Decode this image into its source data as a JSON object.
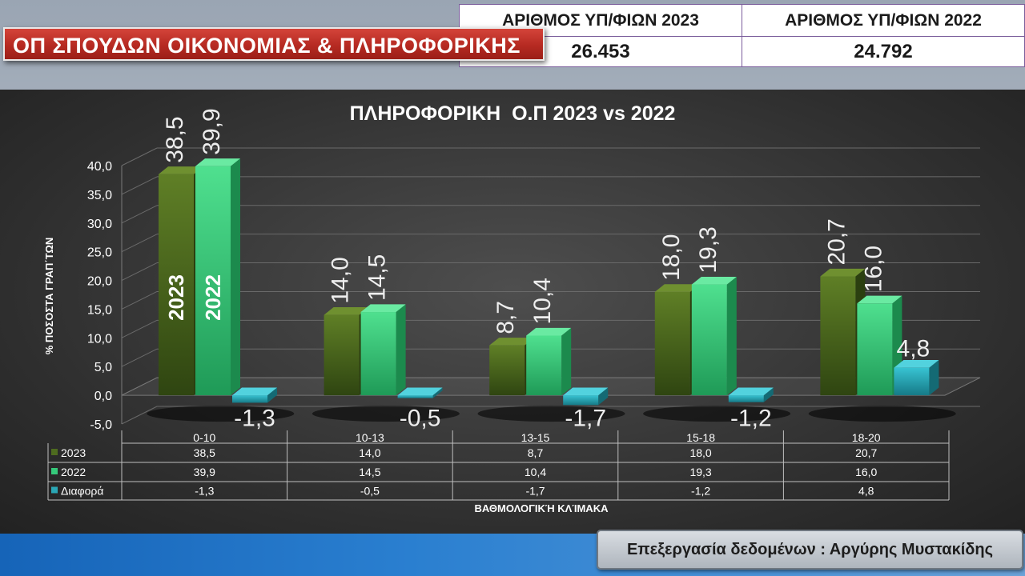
{
  "header": {
    "banner_title": "ΟΠ ΣΠΟΥΔΩΝ ΟΙΚΟΝΟΜΙΑΣ & ΠΛΗΡΟΦΟΡΙΚΗΣ",
    "stats": {
      "label_2023": "ΑΡΙΘΜΟΣ ΥΠ/ΦΙΩΝ 2023",
      "value_2023": "26.453",
      "label_2022": "ΑΡΙΘΜΟΣ ΥΠ/ΦΙΩΝ 2022",
      "value_2022": "24.792"
    }
  },
  "footer": {
    "credit": "Επεξεργασία δεδομένων : Αργύρης Μυστακίδης"
  },
  "colors": {
    "s2023": "#4e6b1f",
    "s2022": "#35c97a",
    "diff": "#2aa7b5",
    "banner": "#b62a22"
  },
  "chart_data": {
    "type": "bar",
    "title": "ΠΛΗΡΟΦΟΡΙΚΗ  Ο.Π 2023 vs 2022",
    "xlabel": "ΒΑΘΜΟΛΟΓΙΚΉ ΚΛΊΜΑΚΑ",
    "ylabel": "% ΠΟΣΟΣΤΑ ΓΡΑΠ΄ΤΩΝ",
    "ylim": [
      -5,
      40
    ],
    "yticks": [
      "-5,0",
      "0,0",
      "5,0",
      "10,0",
      "15,0",
      "20,0",
      "25,0",
      "30,0",
      "35,0",
      "40,0"
    ],
    "categories": [
      "0-10",
      "10-13",
      "13-15",
      "15-18",
      "18-20"
    ],
    "series": [
      {
        "name": "2023",
        "values": [
          38.5,
          14.0,
          8.7,
          18.0,
          20.7
        ],
        "labels": [
          "38,5",
          "14,0",
          "8,7",
          "18,0",
          "20,7"
        ]
      },
      {
        "name": "2022",
        "values": [
          39.9,
          14.5,
          10.4,
          19.3,
          16.0
        ],
        "labels": [
          "39,9",
          "14,5",
          "10,4",
          "19,3",
          "16,0"
        ]
      },
      {
        "name": "Διαφορά",
        "values": [
          -1.3,
          -0.5,
          -1.7,
          -1.2,
          4.8
        ],
        "labels": [
          "-1,3",
          "-0,5",
          "-1,7",
          "-1,2",
          "4,8"
        ]
      }
    ],
    "bar_annotations": [
      "2023",
      "2022"
    ],
    "grid": true,
    "data_table": true
  }
}
